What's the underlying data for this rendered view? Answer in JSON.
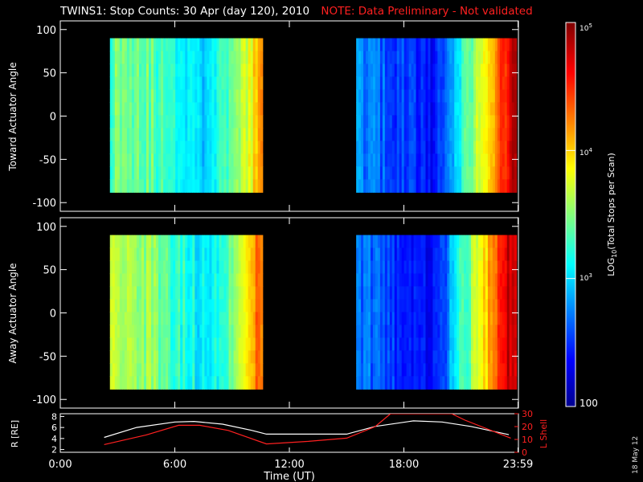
{
  "header": {
    "title": "TWINS1: Stop Counts: 30 Apr (day 120), 2010",
    "note": "NOTE: Data Preliminary - Not validated"
  },
  "datestamp": "18 May 12",
  "colors": {
    "background": "#000000",
    "axes": "#ffffff",
    "note": "#ff2020",
    "lshell": "#ff2020",
    "radius": "#ffffff"
  },
  "chart_data": [
    {
      "type": "heatmap",
      "title": "Toward",
      "ylabel": "Toward Actuator Angle",
      "ylim": [
        -110,
        110
      ],
      "yticks": [
        100,
        50,
        0,
        -50,
        -100
      ],
      "xlim": [
        0,
        24
      ],
      "angle_range": [
        -88,
        90
      ],
      "intervals": [
        {
          "start_hour": 2.6,
          "end_hour": 10.6,
          "profile": [
            [
              2.6,
              0.45
            ],
            [
              3.0,
              0.5
            ],
            [
              4.5,
              0.48
            ],
            [
              5.5,
              0.42
            ],
            [
              6.5,
              0.38
            ],
            [
              7.5,
              0.34
            ],
            [
              8.5,
              0.4
            ],
            [
              9.2,
              0.48
            ],
            [
              9.8,
              0.58
            ],
            [
              10.2,
              0.66
            ],
            [
              10.6,
              0.72
            ]
          ]
        },
        {
          "start_hour": 15.5,
          "end_hour": 23.9,
          "profile": [
            [
              15.5,
              0.26
            ],
            [
              17.0,
              0.2
            ],
            [
              18.5,
              0.16
            ],
            [
              19.5,
              0.12
            ],
            [
              20.2,
              0.22
            ],
            [
              21.0,
              0.4
            ],
            [
              22.0,
              0.58
            ],
            [
              22.8,
              0.72
            ],
            [
              23.3,
              0.84
            ],
            [
              23.6,
              0.9
            ],
            [
              23.9,
              0.94
            ]
          ]
        }
      ]
    },
    {
      "type": "heatmap",
      "title": "Away",
      "ylabel": "Away Actuator Angle",
      "ylim": [
        -110,
        110
      ],
      "yticks": [
        100,
        50,
        0,
        -50,
        -100
      ],
      "xlim": [
        0,
        24
      ],
      "angle_range": [
        -88,
        90
      ],
      "intervals": [
        {
          "start_hour": 2.6,
          "end_hour": 10.6,
          "profile": [
            [
              2.6,
              0.62
            ],
            [
              3.0,
              0.56
            ],
            [
              4.5,
              0.52
            ],
            [
              5.5,
              0.46
            ],
            [
              6.5,
              0.4
            ],
            [
              7.5,
              0.36
            ],
            [
              8.5,
              0.42
            ],
            [
              9.2,
              0.52
            ],
            [
              9.8,
              0.62
            ],
            [
              10.2,
              0.72
            ],
            [
              10.6,
              0.8
            ]
          ]
        },
        {
          "start_hour": 15.5,
          "end_hour": 23.9,
          "profile": [
            [
              15.5,
              0.24
            ],
            [
              17.0,
              0.18
            ],
            [
              18.5,
              0.14
            ],
            [
              19.5,
              0.12
            ],
            [
              20.2,
              0.22
            ],
            [
              21.0,
              0.4
            ],
            [
              22.0,
              0.6
            ],
            [
              22.8,
              0.76
            ],
            [
              23.3,
              0.88
            ],
            [
              23.6,
              0.93
            ],
            [
              23.9,
              0.96
            ]
          ]
        }
      ]
    },
    {
      "type": "line",
      "xlabel": "Time (UT)",
      "ylabel": "R [RE]",
      "ylabel_right": "L Shell",
      "xlim": [
        0,
        24
      ],
      "xticks": [
        0,
        6,
        12,
        18,
        23.98
      ],
      "xtick_labels": [
        "0:00",
        "6:00",
        "12:00",
        "18:00",
        "23:59"
      ],
      "ylim": [
        1.5,
        8.5
      ],
      "yticks": [
        2,
        4,
        6,
        8
      ],
      "ylim_right": [
        0,
        30
      ],
      "yticks_right": [
        0,
        10,
        20,
        30
      ],
      "series": [
        {
          "name": "R",
          "axis": "left",
          "color": "#ffffff",
          "x": [
            2.3,
            4.0,
            6.0,
            7.0,
            8.5,
            10.0,
            10.8,
            13.0,
            15.0,
            16.5,
            18.5,
            20.0,
            21.5,
            23.5
          ],
          "y": [
            4.2,
            6.0,
            7.0,
            7.1,
            6.6,
            5.5,
            4.8,
            4.8,
            4.8,
            6.2,
            7.2,
            7.0,
            6.2,
            4.7
          ]
        },
        {
          "name": "L Shell",
          "axis": "right",
          "color": "#ff2020",
          "x": [
            2.3,
            4.5,
            6.2,
            7.3,
            8.8,
            10.8,
            13.0,
            15.0,
            16.5,
            17.3,
            20.5,
            21.2,
            23.6
          ],
          "y": [
            6.0,
            13.5,
            21.0,
            21.0,
            17.0,
            6.5,
            8.5,
            11.0,
            20.0,
            30.0,
            30.0,
            25.0,
            11.0
          ]
        }
      ]
    }
  ],
  "colorbar": {
    "label": "LOG10(Total Stops per Scan)",
    "label_main": "LOG",
    "label_sub": "10",
    "label_rest": "(Total Stops per Scan)",
    "tick_labels": [
      "10",
      "5",
      "10",
      "4",
      "10",
      "3",
      "100"
    ],
    "tick_values": [
      5,
      4,
      3,
      2
    ]
  }
}
